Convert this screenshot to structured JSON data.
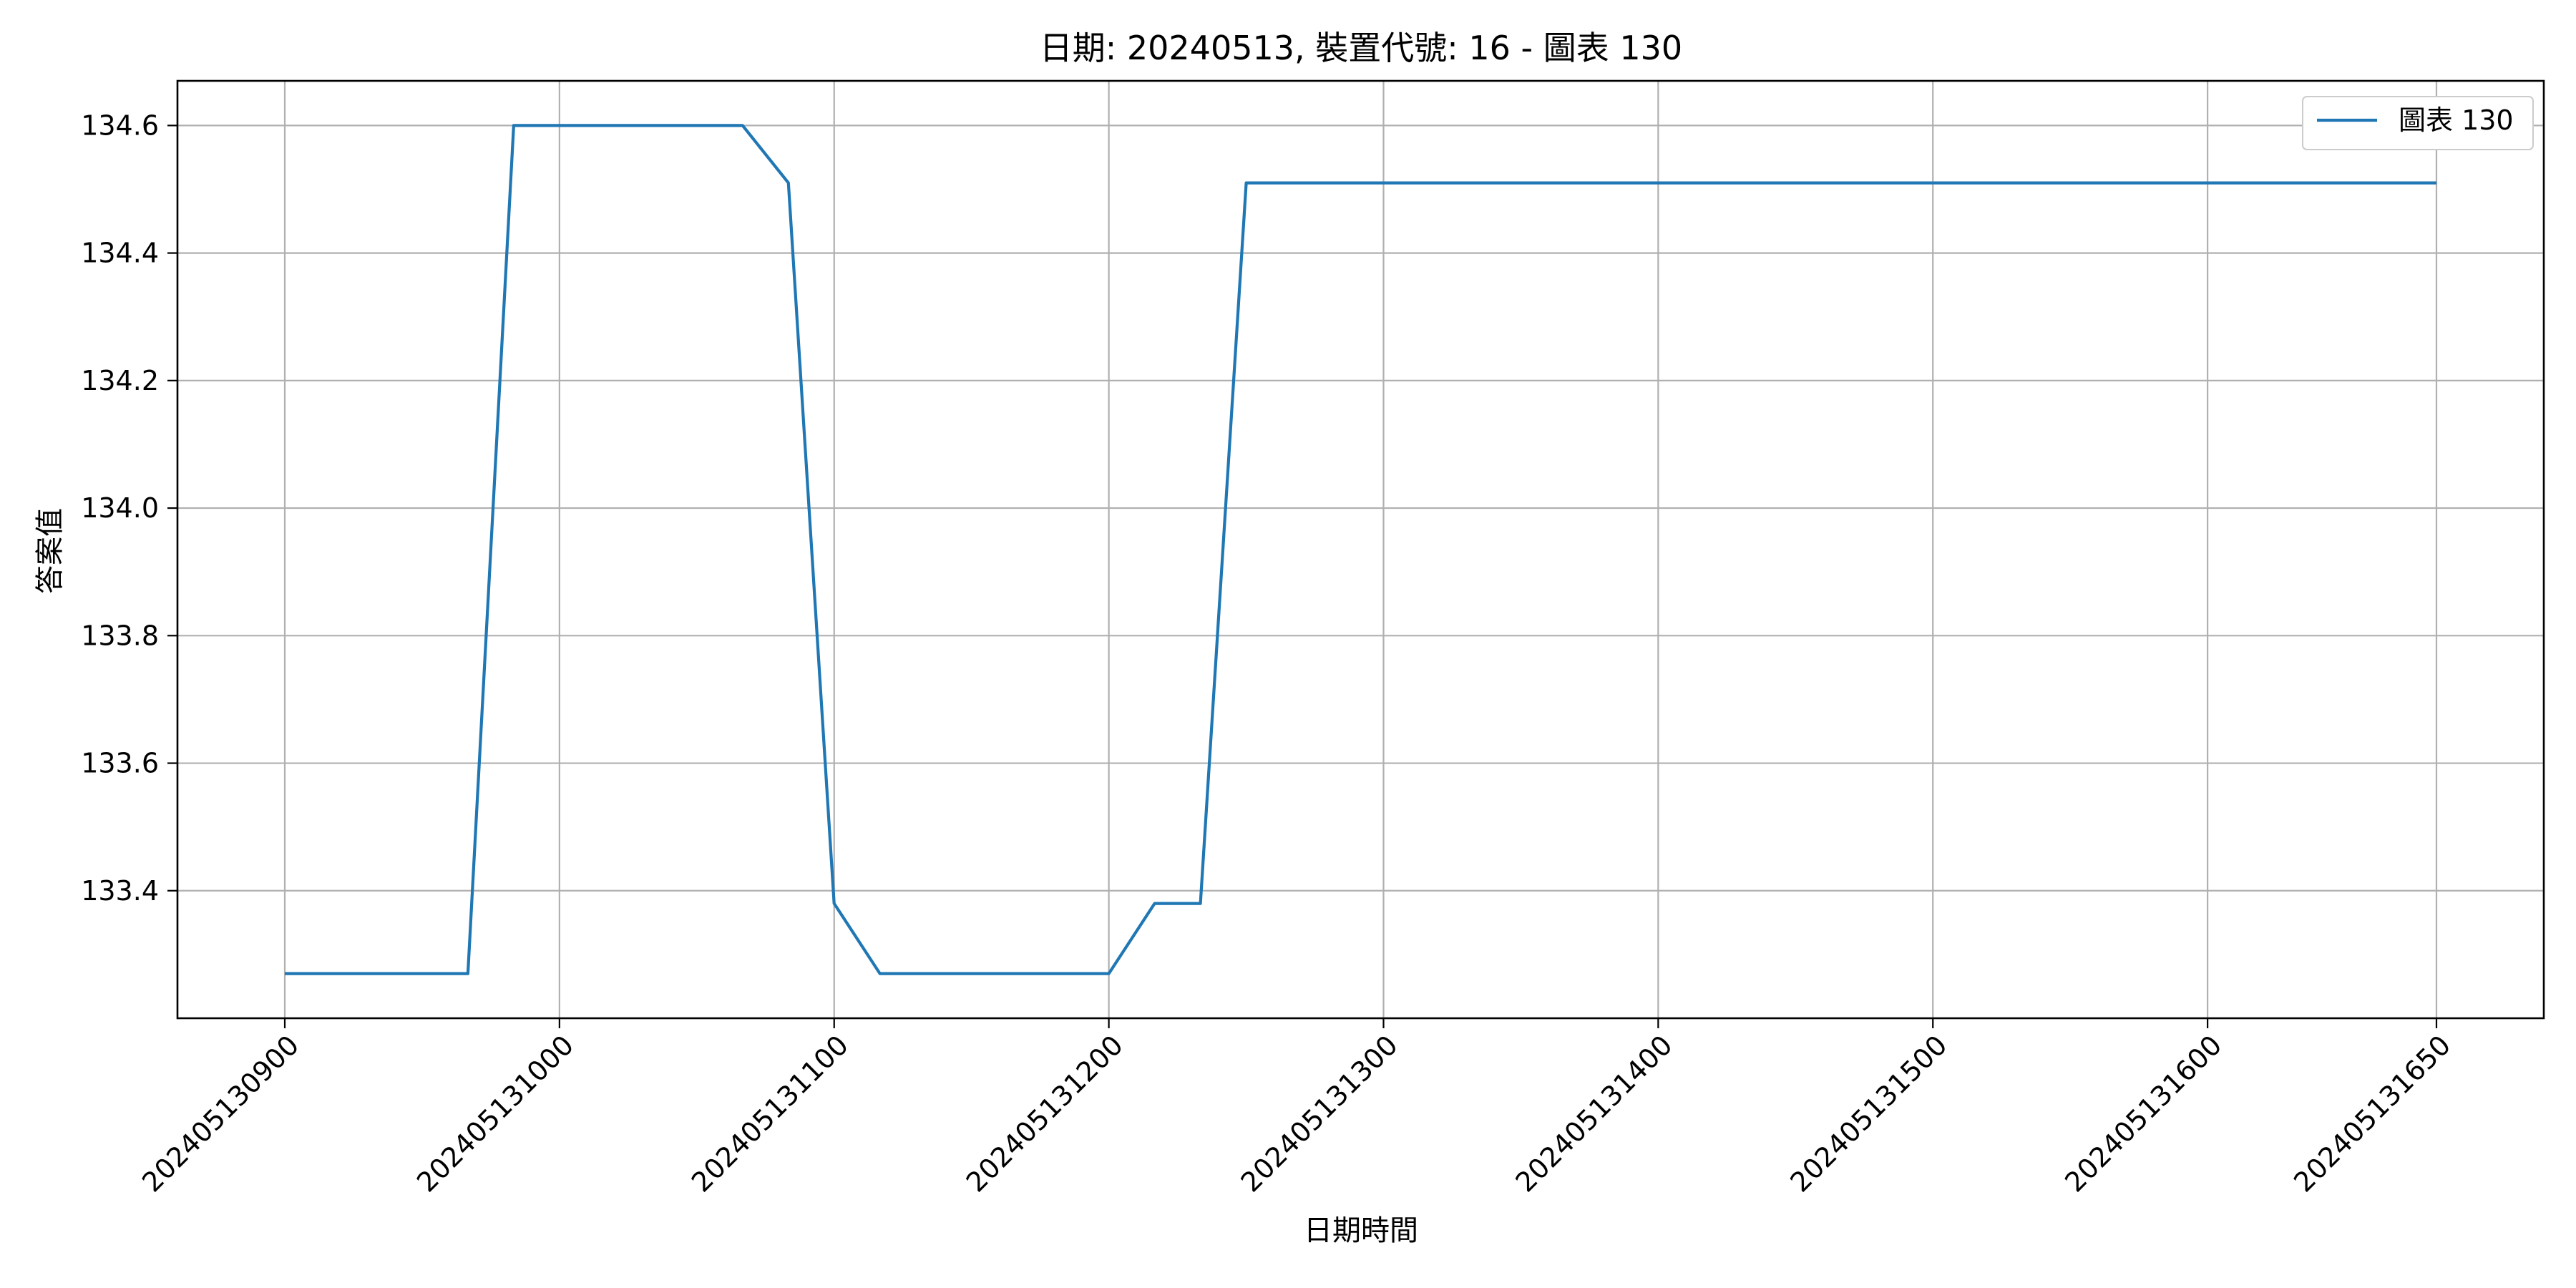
{
  "chart_data": {
    "type": "line",
    "title": "日期: 20240513, 裝置代號: 16 - 圖表 130",
    "xlabel": "日期時間",
    "ylabel": "答案值",
    "x_ticks": [
      "202405130900",
      "202405131000",
      "202405131100",
      "202405131200",
      "202405131300",
      "202405131400",
      "202405131500",
      "202405131600",
      "202405131650"
    ],
    "y_ticks": [
      "133.4",
      "133.6",
      "133.8",
      "134.0",
      "134.2",
      "134.4",
      "134.6"
    ],
    "ylim": [
      133.2,
      134.67
    ],
    "grid": true,
    "legend_position": "top-right",
    "series": [
      {
        "name": "圖表 130",
        "color": "#1f77b4",
        "x": [
          "202405130900",
          "202405130910",
          "202405130920",
          "202405130930",
          "202405130940",
          "202405130950",
          "202405131000",
          "202405131010",
          "202405131020",
          "202405131030",
          "202405131040",
          "202405131050",
          "202405131100",
          "202405131110",
          "202405131120",
          "202405131130",
          "202405131140",
          "202405131150",
          "202405131200",
          "202405131210",
          "202405131220",
          "202405131230",
          "202405131240",
          "202405131250",
          "202405131300",
          "202405131310",
          "202405131320",
          "202405131330",
          "202405131340",
          "202405131350",
          "202405131400",
          "202405131410",
          "202405131420",
          "202405131430",
          "202405131440",
          "202405131450",
          "202405131500",
          "202405131510",
          "202405131520",
          "202405131530",
          "202405131540",
          "202405131550",
          "202405131600",
          "202405131610",
          "202405131620",
          "202405131630",
          "202405131640",
          "202405131650"
        ],
        "values": [
          133.27,
          133.27,
          133.27,
          133.27,
          133.27,
          134.6,
          134.6,
          134.6,
          134.6,
          134.6,
          134.6,
          134.51,
          133.38,
          133.27,
          133.27,
          133.27,
          133.27,
          133.27,
          133.27,
          133.38,
          133.38,
          134.51,
          134.51,
          134.51,
          134.51,
          134.51,
          134.51,
          134.51,
          134.51,
          134.51,
          134.51,
          134.51,
          134.51,
          134.51,
          134.51,
          134.51,
          134.51,
          134.51,
          134.51,
          134.51,
          134.51,
          134.51,
          134.51,
          134.51,
          134.51,
          134.51,
          134.51,
          134.51
        ]
      }
    ]
  }
}
